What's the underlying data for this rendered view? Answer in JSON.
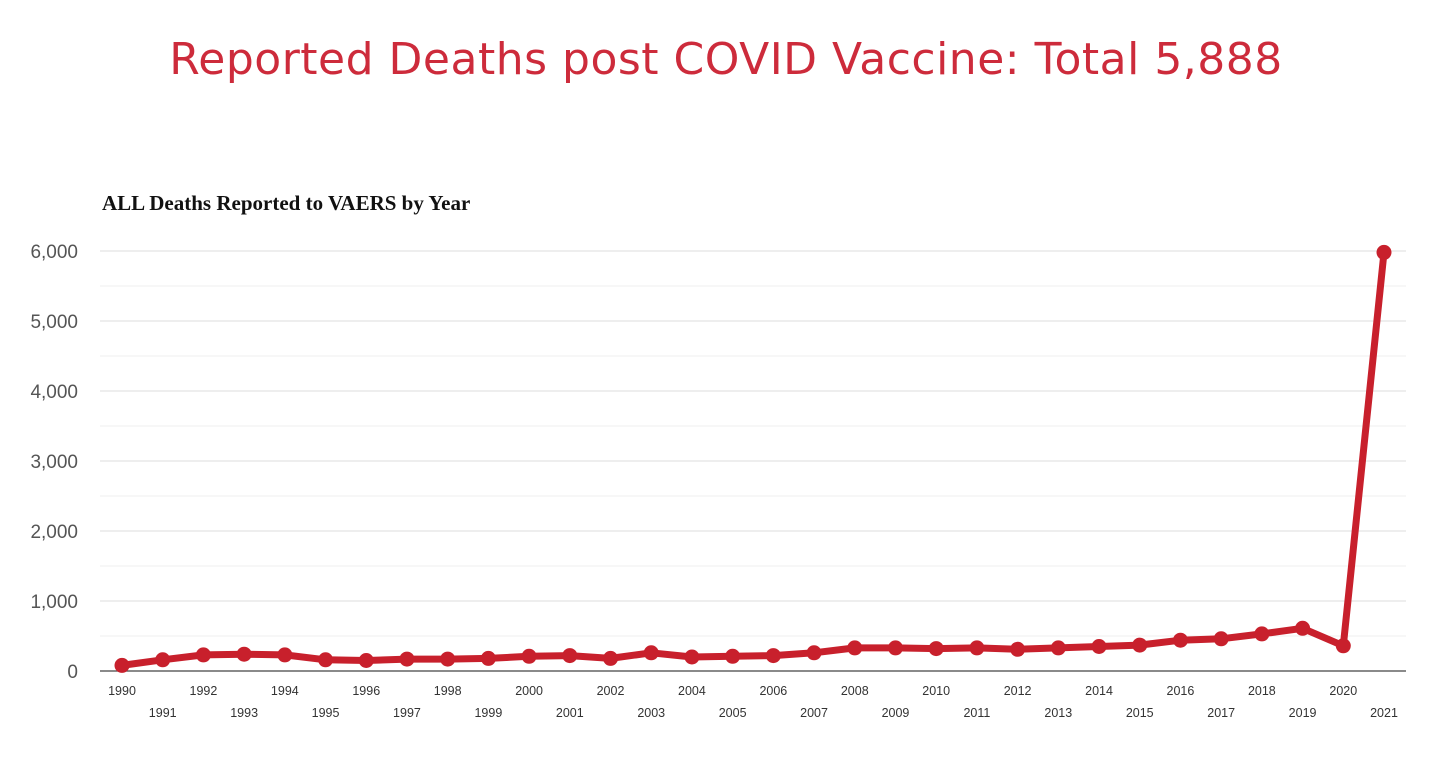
{
  "header": {
    "title": "Reported Deaths post COVID Vaccine: Total 5,888"
  },
  "colors": {
    "title": "#cd2b3b",
    "line": "#c8202c",
    "grid": "#dedede",
    "axis": "#444444"
  },
  "chart_data": {
    "type": "line",
    "title": "ALL Deaths Reported to VAERS by Year",
    "xlabel": "",
    "ylabel": "",
    "ylim": [
      0,
      6000
    ],
    "yticks": [
      0,
      1000,
      2000,
      3000,
      4000,
      5000,
      6000
    ],
    "ytick_labels": [
      "0",
      "1,000",
      "2,000",
      "3,000",
      "4,000",
      "5,000",
      "6,000"
    ],
    "grid": true,
    "categories": [
      "1990",
      "1991",
      "1992",
      "1993",
      "1994",
      "1995",
      "1996",
      "1997",
      "1998",
      "1999",
      "2000",
      "2001",
      "2002",
      "2003",
      "2004",
      "2005",
      "2006",
      "2007",
      "2008",
      "2009",
      "2010",
      "2011",
      "2012",
      "2013",
      "2014",
      "2015",
      "2016",
      "2017",
      "2018",
      "2019",
      "2020",
      "2021"
    ],
    "series": [
      {
        "name": "Deaths",
        "values": [
          80,
          160,
          230,
          240,
          230,
          160,
          150,
          170,
          170,
          180,
          210,
          220,
          180,
          260,
          200,
          210,
          220,
          260,
          330,
          330,
          320,
          330,
          310,
          330,
          350,
          370,
          440,
          460,
          530,
          610,
          360,
          5980
        ]
      }
    ]
  }
}
